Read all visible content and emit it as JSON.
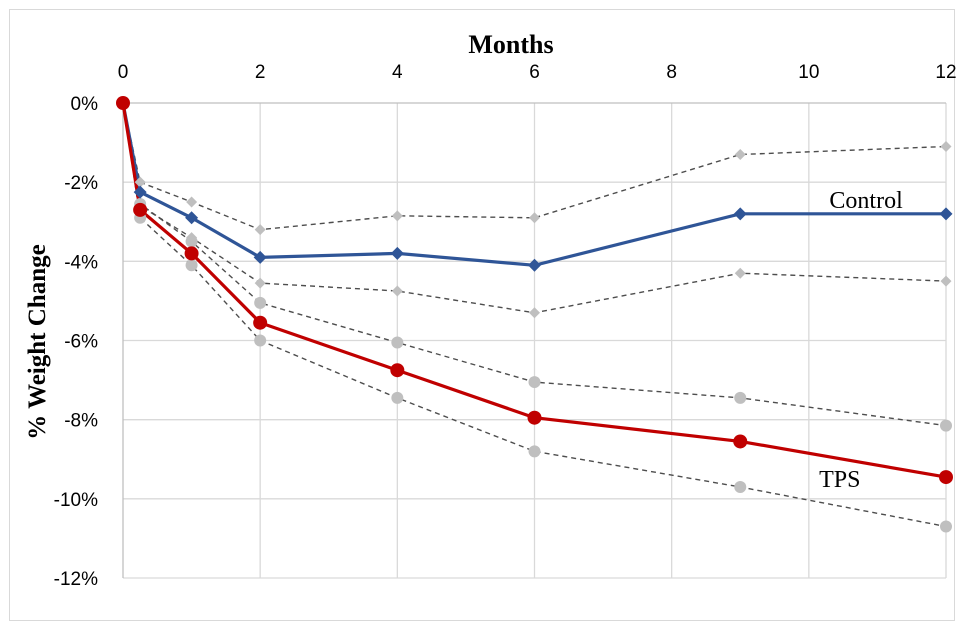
{
  "chart_data": {
    "type": "line",
    "xlabel": "Months",
    "ylabel": "% Weight Change",
    "xlim": [
      0,
      12
    ],
    "ylim": [
      -12,
      0
    ],
    "xticks": [
      0,
      2,
      4,
      6,
      8,
      10,
      12
    ],
    "xtick_labels": [
      "0",
      "2",
      "4",
      "6",
      "8",
      "10",
      "12"
    ],
    "yticks": [
      0,
      -2,
      -4,
      -6,
      -8,
      -10,
      -12
    ],
    "ytick_labels": [
      "0%",
      "-2%",
      "-4%",
      "-6%",
      "-8%",
      "-10%",
      "-12%"
    ],
    "grid": "vertical and horizontal gridlines",
    "legend": "none; series labelled directly on the plot",
    "series": [
      {
        "name": "Control",
        "style": "solid",
        "marker": "diamond",
        "color": "#2f5597",
        "x": [
          0,
          0.25,
          1,
          2,
          4,
          6,
          9,
          12
        ],
        "y": [
          0,
          -2.25,
          -2.9,
          -3.9,
          -3.8,
          -4.1,
          -2.8,
          -2.8
        ]
      },
      {
        "name": "TPS",
        "style": "solid",
        "marker": "circle",
        "color": "#c00000",
        "x": [
          0,
          0.25,
          1,
          2,
          4,
          6,
          9,
          12
        ],
        "y": [
          0,
          -2.7,
          -3.8,
          -5.55,
          -6.75,
          -7.95,
          -8.55,
          -9.45
        ]
      },
      {
        "style": "dashed",
        "marker": "diamond",
        "color": "#bfbfbf",
        "x": [
          0,
          0.25,
          1,
          2,
          4,
          6,
          9,
          12
        ],
        "y": [
          0,
          -2.0,
          -2.5,
          -3.2,
          -2.85,
          -2.9,
          -1.3,
          -1.1
        ]
      },
      {
        "style": "dashed",
        "marker": "diamond",
        "color": "#bfbfbf",
        "x": [
          0,
          0.25,
          1,
          2,
          4,
          6,
          9,
          12
        ],
        "y": [
          0,
          -2.6,
          -3.4,
          -4.55,
          -4.75,
          -5.3,
          -4.3,
          -4.5
        ]
      },
      {
        "style": "dashed",
        "marker": "circle",
        "color": "#bfbfbf",
        "x": [
          0,
          0.25,
          1,
          2,
          4,
          6,
          9,
          12
        ],
        "y": [
          0,
          -2.55,
          -3.5,
          -5.05,
          -6.05,
          -7.05,
          -7.45,
          -8.15
        ]
      },
      {
        "style": "dashed",
        "marker": "circle",
        "color": "#bfbfbf",
        "x": [
          0,
          0.25,
          1,
          2,
          4,
          6,
          9,
          12
        ],
        "y": [
          0,
          -2.9,
          -4.1,
          -6.0,
          -7.45,
          -8.8,
          -9.7,
          -10.7
        ]
      }
    ],
    "annotations": [
      {
        "text": "Control",
        "x": 10.3,
        "y": -2.45
      },
      {
        "text": "TPS",
        "x": 10.15,
        "y": -9.5
      }
    ]
  }
}
